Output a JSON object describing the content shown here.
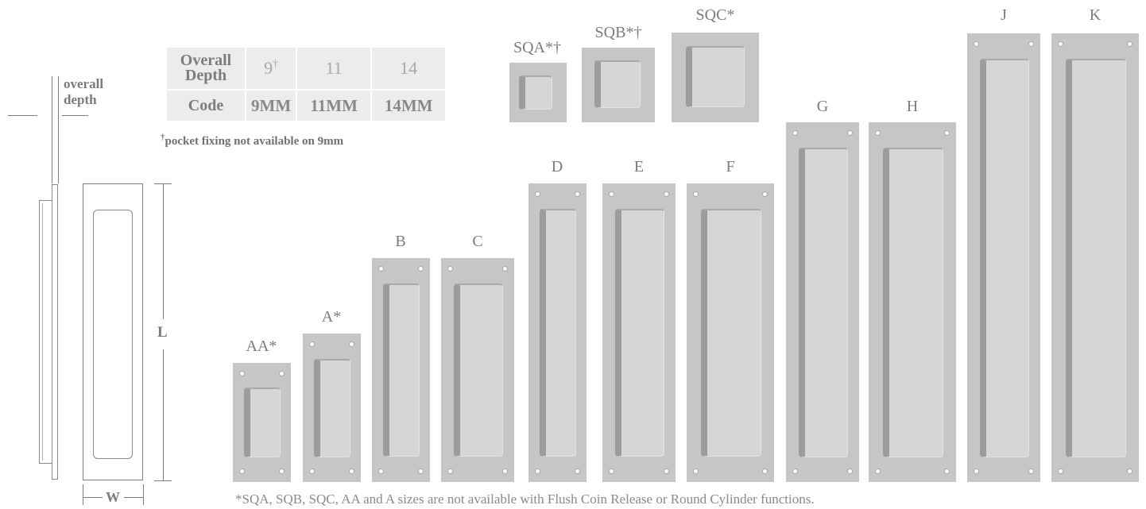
{
  "table": {
    "row1_header": "Overall Depth",
    "row1_values": [
      "9",
      "11",
      "14"
    ],
    "dagger": "†",
    "row2_header": "Code",
    "row2_values": [
      "9MM",
      "11MM",
      "14MM"
    ]
  },
  "note_dagger": "†",
  "note_text": "pocket fixing not available on 9mm",
  "footnote": "*SQA, SQB, SQC, AA and A sizes are not available with Flush Coin Release or Round Cylinder functions.",
  "drawing": {
    "depth_label_line1": "overall",
    "depth_label_line2": "depth",
    "length_label": "L",
    "width_label": "W"
  },
  "sizes": [
    {
      "label": "SQA*†",
      "holes": false
    },
    {
      "label": "SQB*†",
      "holes": false
    },
    {
      "label": "SQC*",
      "holes": false
    },
    {
      "label": "AA*",
      "holes": true
    },
    {
      "label": "A*",
      "holes": true
    },
    {
      "label": "B",
      "holes": true
    },
    {
      "label": "C",
      "holes": true
    },
    {
      "label": "D",
      "holes": true
    },
    {
      "label": "E",
      "holes": true
    },
    {
      "label": "F",
      "holes": true
    },
    {
      "label": "G",
      "holes": true
    },
    {
      "label": "H",
      "holes": true
    },
    {
      "label": "J",
      "holes": true
    },
    {
      "label": "K",
      "holes": true
    }
  ]
}
